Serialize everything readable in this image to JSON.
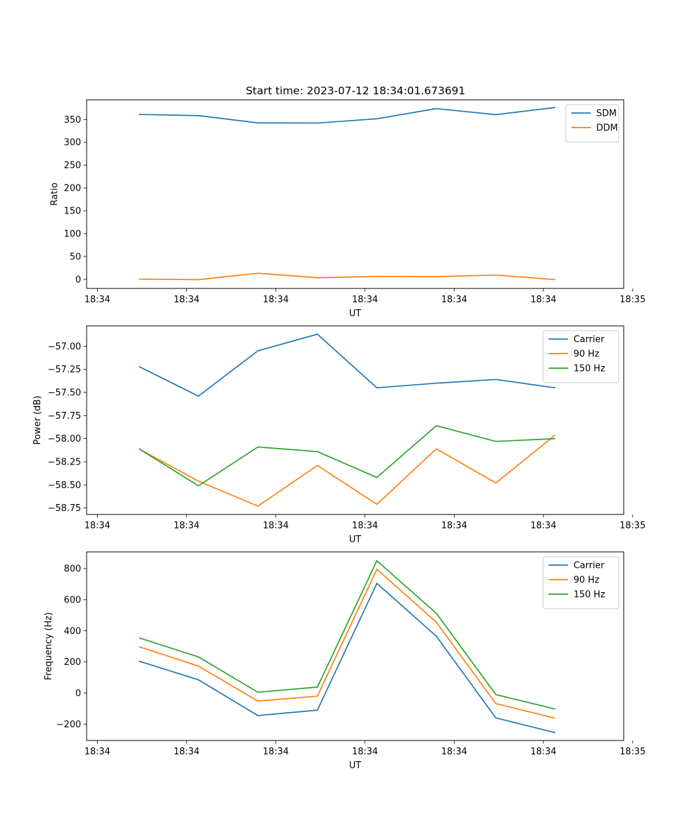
{
  "figure_title": "Start time: 2023-07-12 18:34:01.673691",
  "colors": {
    "blue": "#1f77b4",
    "orange": "#ff7f0e",
    "green": "#2ca02c"
  },
  "chart_data": [
    {
      "type": "line",
      "title": "Start time: 2023-07-12 18:34:01.673691",
      "xlabel": "UT",
      "ylabel": "Ratio",
      "xlim": [
        -0.38,
        8.65
      ],
      "ylim": [
        -20,
        393
      ],
      "xticks": [
        -0.2,
        1.3,
        2.8,
        4.3,
        5.8,
        7.3,
        8.8
      ],
      "xtick_labels": [
        "18:34",
        "18:34",
        "18:34",
        "18:34",
        "18:34",
        "18:34",
        "18:35"
      ],
      "yticks": [
        0,
        50,
        100,
        150,
        200,
        250,
        300,
        350
      ],
      "ytick_labels": [
        "0",
        "50",
        "100",
        "150",
        "200",
        "250",
        "300",
        "350"
      ],
      "legend_position": "upper right",
      "x": [
        0.5,
        1.5,
        2.5,
        3.5,
        4.5,
        5.5,
        6.5,
        7.5
      ],
      "series": [
        {
          "name": "SDM",
          "color": "#1f77b4",
          "values": [
            361,
            358.5,
            342.5,
            342.2,
            351.5,
            373.8,
            360.5,
            376.3
          ]
        },
        {
          "name": "DDM",
          "color": "#ff7f0e",
          "values": [
            0.3,
            -0.8,
            13.3,
            3.3,
            6.3,
            5.8,
            9.3,
            -0.7
          ]
        }
      ]
    },
    {
      "type": "line",
      "xlabel": "UT",
      "ylabel": "Power (dB)",
      "xlim": [
        -0.38,
        8.65
      ],
      "ylim": [
        -58.82,
        -56.78
      ],
      "xticks": [
        -0.2,
        1.3,
        2.8,
        4.3,
        5.8,
        7.3,
        8.8
      ],
      "xtick_labels": [
        "18:34",
        "18:34",
        "18:34",
        "18:34",
        "18:34",
        "18:34",
        "18:35"
      ],
      "yticks": [
        -58.75,
        -58.5,
        -58.25,
        -58.0,
        -57.75,
        -57.5,
        -57.25,
        -57.0
      ],
      "ytick_labels": [
        "−58.75",
        "−58.50",
        "−58.25",
        "−58.00",
        "−57.75",
        "−57.50",
        "−57.25",
        "−57.00"
      ],
      "legend_position": "upper right",
      "x": [
        0.5,
        1.5,
        2.5,
        3.5,
        4.5,
        5.5,
        6.5,
        7.5
      ],
      "series": [
        {
          "name": "Carrier",
          "color": "#1f77b4",
          "values": [
            -57.22,
            -57.54,
            -57.05,
            -56.87,
            -57.45,
            -57.4,
            -57.36,
            -57.45
          ]
        },
        {
          "name": "90 Hz",
          "color": "#ff7f0e",
          "values": [
            -58.11,
            -58.46,
            -58.73,
            -58.29,
            -58.71,
            -58.11,
            -58.48,
            -57.96
          ]
        },
        {
          "name": "150 Hz",
          "color": "#2ca02c",
          "values": [
            -58.11,
            -58.51,
            -58.09,
            -58.14,
            -58.42,
            -57.86,
            -58.03,
            -58.0
          ]
        }
      ]
    },
    {
      "type": "line",
      "xlabel": "UT",
      "ylabel": "Frequency (Hz)",
      "xlim": [
        -0.38,
        8.65
      ],
      "ylim": [
        -305,
        907
      ],
      "xticks": [
        -0.2,
        1.3,
        2.8,
        4.3,
        5.8,
        7.3,
        8.8
      ],
      "xtick_labels": [
        "18:34",
        "18:34",
        "18:34",
        "18:34",
        "18:34",
        "18:34",
        "18:35"
      ],
      "yticks": [
        -200,
        0,
        200,
        400,
        600,
        800
      ],
      "ytick_labels": [
        "−200",
        "0",
        "200",
        "400",
        "600",
        "800"
      ],
      "legend_position": "upper right",
      "x": [
        0.5,
        1.5,
        2.5,
        3.5,
        4.5,
        5.5,
        6.5,
        7.5
      ],
      "series": [
        {
          "name": "Carrier",
          "color": "#1f77b4",
          "values": [
            205,
            85,
            -145,
            -110,
            705,
            365,
            -160,
            -255
          ]
        },
        {
          "name": "90 Hz",
          "color": "#ff7f0e",
          "values": [
            298,
            173,
            -52,
            -20,
            795,
            455,
            -68,
            -162
          ]
        },
        {
          "name": "150 Hz",
          "color": "#2ca02c",
          "values": [
            355,
            232,
            5,
            38,
            850,
            512,
            -10,
            -103
          ]
        }
      ]
    }
  ]
}
